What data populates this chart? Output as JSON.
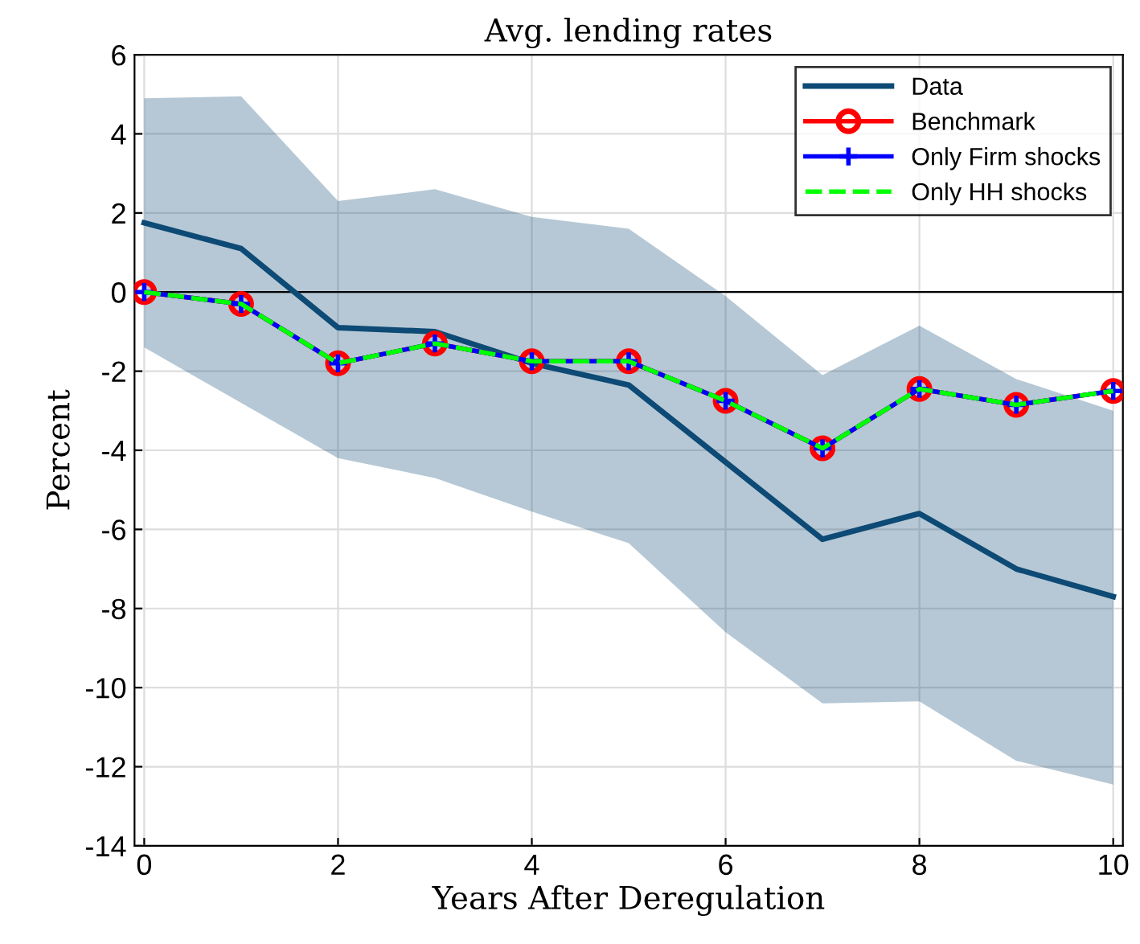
{
  "chart_data": {
    "type": "line",
    "title": "Avg. lending rates",
    "xlabel": "Years After Deregulation",
    "ylabel": "Percent",
    "x": [
      0,
      1,
      2,
      3,
      4,
      5,
      6,
      7,
      8,
      9,
      10
    ],
    "series": [
      {
        "name": "Data",
        "color": "#0d4a75",
        "values": [
          1.75,
          1.1,
          -0.9,
          -1.0,
          -1.8,
          -2.35,
          -4.3,
          -6.25,
          -5.6,
          -7.0,
          -7.7
        ],
        "lower": [
          -1.4,
          -2.8,
          -4.2,
          -4.7,
          -5.55,
          -6.35,
          -8.6,
          -10.4,
          -10.35,
          -11.85,
          -12.45
        ],
        "upper": [
          4.9,
          4.95,
          2.3,
          2.6,
          1.9,
          1.6,
          -0.1,
          -2.1,
          -0.85,
          -2.2,
          -3.0
        ],
        "marker": "none",
        "line_style": "solid"
      },
      {
        "name": "Benchmark",
        "color": "#ff0000",
        "values": [
          0,
          -0.3,
          -1.8,
          -1.3,
          -1.75,
          -1.75,
          -2.75,
          -3.95,
          -2.45,
          -2.85,
          -2.5
        ],
        "marker": "circle",
        "line_style": "solid"
      },
      {
        "name": "Only Firm shocks",
        "color": "#0000ff",
        "values": [
          0,
          -0.3,
          -1.8,
          -1.3,
          -1.75,
          -1.75,
          -2.75,
          -3.95,
          -2.45,
          -2.85,
          -2.5
        ],
        "marker": "cross",
        "line_style": "solid"
      },
      {
        "name": "Only HH shocks",
        "color": "#00ff00",
        "values": [
          0,
          -0.3,
          -1.8,
          -1.3,
          -1.75,
          -1.75,
          -2.75,
          -3.95,
          -2.45,
          -2.85,
          -2.5
        ],
        "marker": "none",
        "line_style": "dashed"
      }
    ],
    "xlim": [
      -0.1,
      10.1
    ],
    "xticks": [
      0,
      2,
      4,
      6,
      8,
      10
    ],
    "ylim": [
      -14,
      6
    ],
    "yticks": [
      -14,
      -12,
      -10,
      -8,
      -6,
      -4,
      -2,
      0,
      2,
      4,
      6
    ],
    "ref_lines": [
      {
        "axis": "y",
        "value": 0,
        "label": null,
        "color": "#000000"
      }
    ],
    "grid": true,
    "legend": "top right"
  }
}
